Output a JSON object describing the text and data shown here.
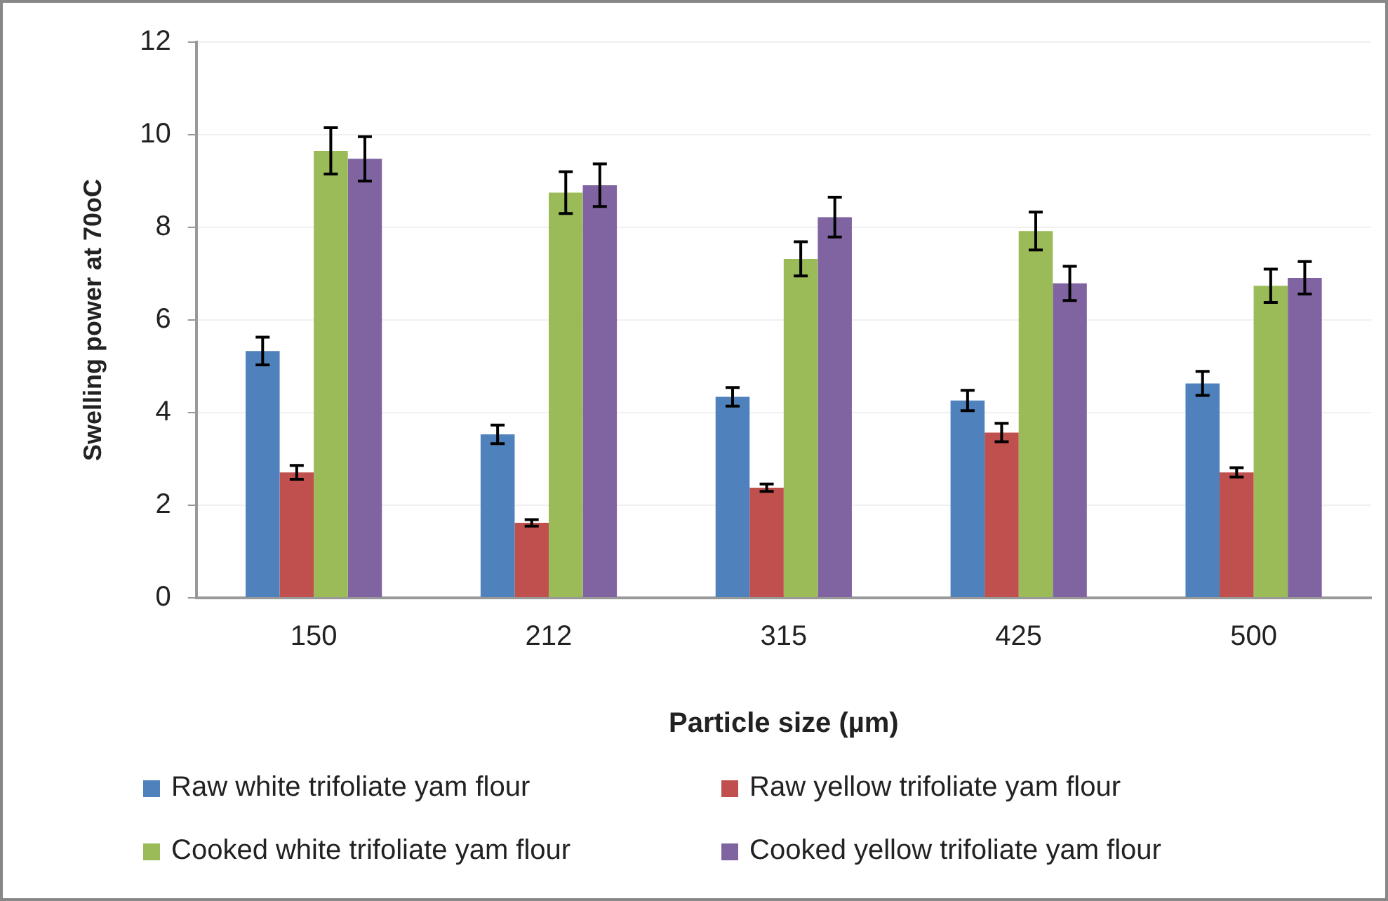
{
  "chart_data": {
    "type": "bar",
    "xlabel": "Particle size (µm)",
    "ylabel": "Swelling power at 70oC",
    "categories": [
      "150",
      "212",
      "315",
      "425",
      "500"
    ],
    "series": [
      {
        "name": "Raw white trifoliate yam flour",
        "color": "#4f81bd",
        "values": [
          5.33,
          3.53,
          4.34,
          4.26,
          4.63
        ],
        "errors": [
          0.3,
          0.2,
          0.2,
          0.22,
          0.26
        ]
      },
      {
        "name": "Raw yellow trifoliate yam flour",
        "color": "#c0504d",
        "values": [
          2.71,
          1.62,
          2.38,
          3.57,
          2.71
        ],
        "errors": [
          0.15,
          0.07,
          0.08,
          0.2,
          0.1
        ]
      },
      {
        "name": "Cooked white trifoliate yam flour",
        "color": "#9bbb59",
        "values": [
          9.65,
          8.75,
          7.32,
          7.92,
          6.74
        ],
        "errors": [
          0.5,
          0.45,
          0.37,
          0.41,
          0.36
        ]
      },
      {
        "name": "Cooked yellow trifoliate yam flour",
        "color": "#8064a2",
        "values": [
          9.48,
          8.91,
          8.22,
          6.79,
          6.91
        ],
        "errors": [
          0.48,
          0.46,
          0.43,
          0.37,
          0.35
        ]
      }
    ],
    "ylim": [
      0,
      12
    ],
    "yticks": [
      0,
      2,
      4,
      6,
      8,
      10,
      12
    ],
    "grid": "y",
    "legend": "bottom"
  }
}
